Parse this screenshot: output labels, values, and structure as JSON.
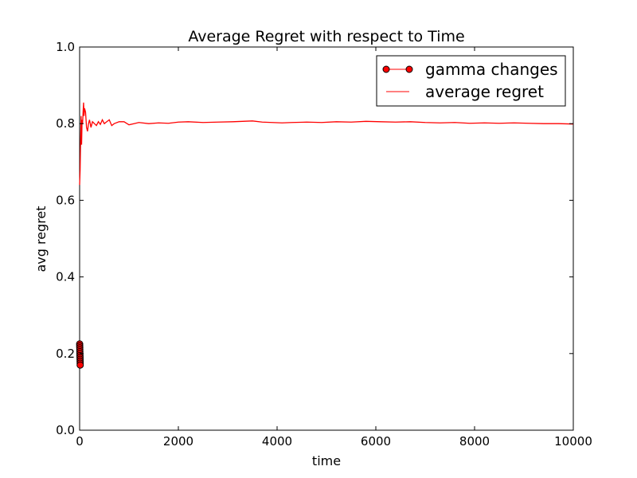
{
  "chart_data": {
    "type": "line",
    "title": "Average Regret with respect to Time",
    "xlabel": "time",
    "ylabel": "avg regret",
    "xlim": [
      0,
      10000
    ],
    "ylim": [
      0.0,
      1.0
    ],
    "x_ticks": [
      0,
      2000,
      4000,
      6000,
      8000,
      10000
    ],
    "x_tick_labels": [
      "0",
      "2000",
      "4000",
      "6000",
      "8000",
      "10000"
    ],
    "y_ticks": [
      0.0,
      0.2,
      0.4,
      0.6,
      0.8,
      1.0
    ],
    "y_tick_labels": [
      "0.0",
      "0.2",
      "0.4",
      "0.6",
      "0.8",
      "1.0"
    ],
    "grid": false,
    "legend_position": "top-right",
    "colors": {
      "series": "#ff0000",
      "marker_edge": "#000000",
      "axes": "#000000"
    },
    "series": [
      {
        "name": "gamma changes",
        "style": "line-with-circle-markers",
        "x": [
          1,
          2,
          3,
          4,
          5,
          6,
          7,
          8,
          9,
          10,
          11,
          12
        ],
        "y": [
          0.225,
          0.22,
          0.215,
          0.21,
          0.205,
          0.2,
          0.195,
          0.19,
          0.185,
          0.18,
          0.175,
          0.17
        ]
      },
      {
        "name": "average regret",
        "style": "line",
        "x": [
          0,
          10,
          20,
          30,
          40,
          50,
          60,
          70,
          80,
          90,
          100,
          120,
          140,
          160,
          180,
          200,
          230,
          260,
          300,
          340,
          380,
          420,
          460,
          500,
          550,
          600,
          650,
          700,
          800,
          900,
          1000,
          1100,
          1200,
          1400,
          1600,
          1800,
          2000,
          2200,
          2500,
          2800,
          3100,
          3300,
          3500,
          3700,
          3900,
          4100,
          4300,
          4600,
          4900,
          5200,
          5500,
          5800,
          6100,
          6400,
          6700,
          7000,
          7300,
          7600,
          7900,
          8200,
          8500,
          8800,
          9100,
          9400,
          9700,
          10000
        ],
        "y": [
          0.64,
          0.68,
          0.76,
          0.82,
          0.745,
          0.81,
          0.8,
          0.83,
          0.855,
          0.82,
          0.84,
          0.83,
          0.79,
          0.78,
          0.8,
          0.81,
          0.79,
          0.805,
          0.8,
          0.795,
          0.805,
          0.798,
          0.81,
          0.8,
          0.805,
          0.81,
          0.795,
          0.8,
          0.805,
          0.805,
          0.797,
          0.8,
          0.803,
          0.8,
          0.802,
          0.801,
          0.804,
          0.805,
          0.803,
          0.804,
          0.805,
          0.806,
          0.807,
          0.804,
          0.803,
          0.802,
          0.803,
          0.804,
          0.803,
          0.805,
          0.804,
          0.806,
          0.805,
          0.804,
          0.805,
          0.803,
          0.802,
          0.803,
          0.801,
          0.802,
          0.801,
          0.802,
          0.801,
          0.8,
          0.8,
          0.799
        ]
      }
    ]
  }
}
